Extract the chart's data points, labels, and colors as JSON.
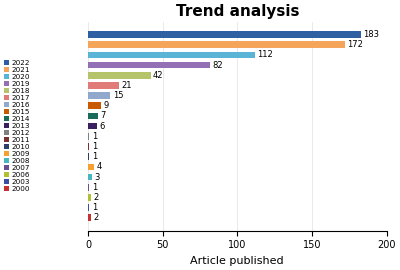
{
  "title": "Trend analysis",
  "xlabel": "Article published",
  "years": [
    "2022",
    "2021",
    "2020",
    "2019",
    "2018",
    "2017",
    "2016",
    "2015",
    "2014",
    "2013",
    "2012",
    "2011",
    "2010",
    "2009",
    "2008",
    "2007",
    "2006",
    "2003",
    "2000"
  ],
  "values": [
    183,
    172,
    112,
    82,
    42,
    21,
    15,
    9,
    7,
    6,
    1,
    1,
    1,
    4,
    3,
    1,
    2,
    1,
    2
  ],
  "colors": [
    "#2e5fa3",
    "#f5a55a",
    "#5ab4d6",
    "#9370b5",
    "#b5c46a",
    "#e07b78",
    "#8fa8cc",
    "#c85a00",
    "#1a6b5a",
    "#3a2060",
    "#808080",
    "#7a3030",
    "#2a3f6a",
    "#f5a030",
    "#48b8c0",
    "#6a5090",
    "#b0c030",
    "#3a4fa0",
    "#c83030"
  ],
  "xlim": [
    0,
    200
  ],
  "xticks": [
    0,
    50,
    100,
    150,
    200
  ],
  "title_fontsize": 11,
  "label_fontsize": 8,
  "tick_fontsize": 7,
  "bar_height": 0.65
}
